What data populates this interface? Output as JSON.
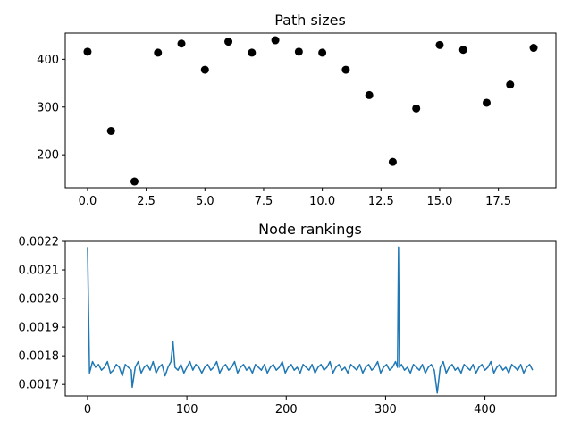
{
  "colors": {
    "scatter_marker": "#000000",
    "line_series": "#1f77b4",
    "axes": "#000000",
    "background": "#ffffff"
  },
  "chart_data": [
    {
      "type": "scatter",
      "title": "Path sizes",
      "xlabel": "",
      "ylabel": "",
      "xlim": [
        -0.95,
        19.95
      ],
      "ylim": [
        131,
        455
      ],
      "grid": false,
      "xticks": [
        0,
        2.5,
        5,
        7.5,
        10,
        12.5,
        15,
        17.5
      ],
      "xtick_labels": [
        "0.0",
        "2.5",
        "5.0",
        "7.5",
        "10.0",
        "12.5",
        "15.0",
        "17.5"
      ],
      "yticks": [
        200,
        300,
        400
      ],
      "ytick_labels": [
        "200",
        "300",
        "400"
      ],
      "x": [
        0,
        1,
        2,
        3,
        4,
        5,
        6,
        7,
        8,
        9,
        10,
        11,
        12,
        13,
        14,
        15,
        16,
        17,
        18,
        19
      ],
      "y": [
        416,
        250,
        144,
        414,
        433,
        378,
        437,
        414,
        440,
        416,
        414,
        378,
        325,
        185,
        297,
        430,
        420,
        309,
        347,
        424
      ]
    },
    {
      "type": "line",
      "title": "Node rankings",
      "xlabel": "",
      "ylabel": "",
      "xlim": [
        -22.45,
        471.45
      ],
      "ylim": [
        0.00166,
        0.0022
      ],
      "grid": false,
      "xticks": [
        0,
        100,
        200,
        300,
        400
      ],
      "xtick_labels": [
        "0",
        "100",
        "200",
        "300",
        "400"
      ],
      "yticks": [
        0.0017,
        0.0018,
        0.0019,
        0.002,
        0.0021,
        0.0022
      ],
      "ytick_labels": [
        "0.0017",
        "0.0018",
        "0.0019",
        "0.0020",
        "0.0021",
        "0.0022"
      ],
      "x": [
        0,
        2,
        5,
        8,
        11,
        14,
        17,
        20,
        23,
        26,
        29,
        32,
        35,
        38,
        41,
        44,
        45,
        48,
        51,
        54,
        57,
        60,
        63,
        66,
        69,
        72,
        75,
        78,
        81,
        84,
        86,
        88,
        91,
        94,
        97,
        100,
        103,
        106,
        109,
        112,
        115,
        118,
        121,
        124,
        127,
        130,
        133,
        136,
        139,
        142,
        145,
        148,
        151,
        154,
        157,
        160,
        163,
        166,
        169,
        172,
        175,
        178,
        181,
        184,
        187,
        190,
        193,
        196,
        199,
        202,
        205,
        208,
        211,
        214,
        217,
        220,
        223,
        226,
        229,
        232,
        235,
        238,
        241,
        244,
        247,
        250,
        253,
        256,
        259,
        262,
        265,
        268,
        271,
        274,
        277,
        280,
        283,
        286,
        289,
        292,
        295,
        298,
        301,
        304,
        307,
        310,
        312,
        313,
        314,
        316,
        319,
        322,
        325,
        328,
        331,
        334,
        337,
        340,
        343,
        346,
        349,
        352,
        355,
        358,
        361,
        364,
        367,
        370,
        373,
        376,
        379,
        382,
        385,
        388,
        391,
        394,
        397,
        400,
        403,
        406,
        409,
        412,
        415,
        418,
        421,
        424,
        427,
        430,
        433,
        436,
        439,
        442,
        445,
        448
      ],
      "y": [
        0.00218,
        0.00174,
        0.00178,
        0.00176,
        0.00177,
        0.00175,
        0.00176,
        0.00178,
        0.00174,
        0.00175,
        0.00177,
        0.00176,
        0.00173,
        0.00177,
        0.00176,
        0.00175,
        0.00169,
        0.00176,
        0.00178,
        0.00174,
        0.00176,
        0.00177,
        0.00175,
        0.00178,
        0.00174,
        0.00176,
        0.00177,
        0.00173,
        0.00176,
        0.00178,
        0.00185,
        0.00176,
        0.00175,
        0.00177,
        0.00174,
        0.00176,
        0.00178,
        0.00175,
        0.00177,
        0.00176,
        0.00174,
        0.00176,
        0.00177,
        0.00175,
        0.00176,
        0.00178,
        0.00174,
        0.00176,
        0.00177,
        0.00175,
        0.00176,
        0.00178,
        0.00174,
        0.00176,
        0.00177,
        0.00175,
        0.00176,
        0.00174,
        0.00177,
        0.00176,
        0.00175,
        0.00177,
        0.00174,
        0.00176,
        0.00177,
        0.00175,
        0.00176,
        0.00178,
        0.00174,
        0.00176,
        0.00177,
        0.00175,
        0.00176,
        0.00174,
        0.00177,
        0.00176,
        0.00175,
        0.00177,
        0.00174,
        0.00176,
        0.00177,
        0.00175,
        0.00176,
        0.00178,
        0.00174,
        0.00176,
        0.00177,
        0.00175,
        0.00176,
        0.00174,
        0.00177,
        0.00176,
        0.00175,
        0.00177,
        0.00174,
        0.00176,
        0.00177,
        0.00175,
        0.00176,
        0.00178,
        0.00174,
        0.00176,
        0.00177,
        0.00175,
        0.00176,
        0.00178,
        0.00176,
        0.00218,
        0.00176,
        0.00177,
        0.00175,
        0.00176,
        0.00174,
        0.00177,
        0.00176,
        0.00175,
        0.00177,
        0.00174,
        0.00176,
        0.00177,
        0.00175,
        0.00167,
        0.00176,
        0.00178,
        0.00174,
        0.00176,
        0.00177,
        0.00175,
        0.00176,
        0.00174,
        0.00177,
        0.00176,
        0.00175,
        0.00177,
        0.00174,
        0.00176,
        0.00177,
        0.00175,
        0.00176,
        0.00178,
        0.00174,
        0.00176,
        0.00177,
        0.00175,
        0.00176,
        0.00174,
        0.00177,
        0.00176,
        0.00175,
        0.00177,
        0.00174,
        0.00176,
        0.00177,
        0.00175
      ]
    }
  ]
}
